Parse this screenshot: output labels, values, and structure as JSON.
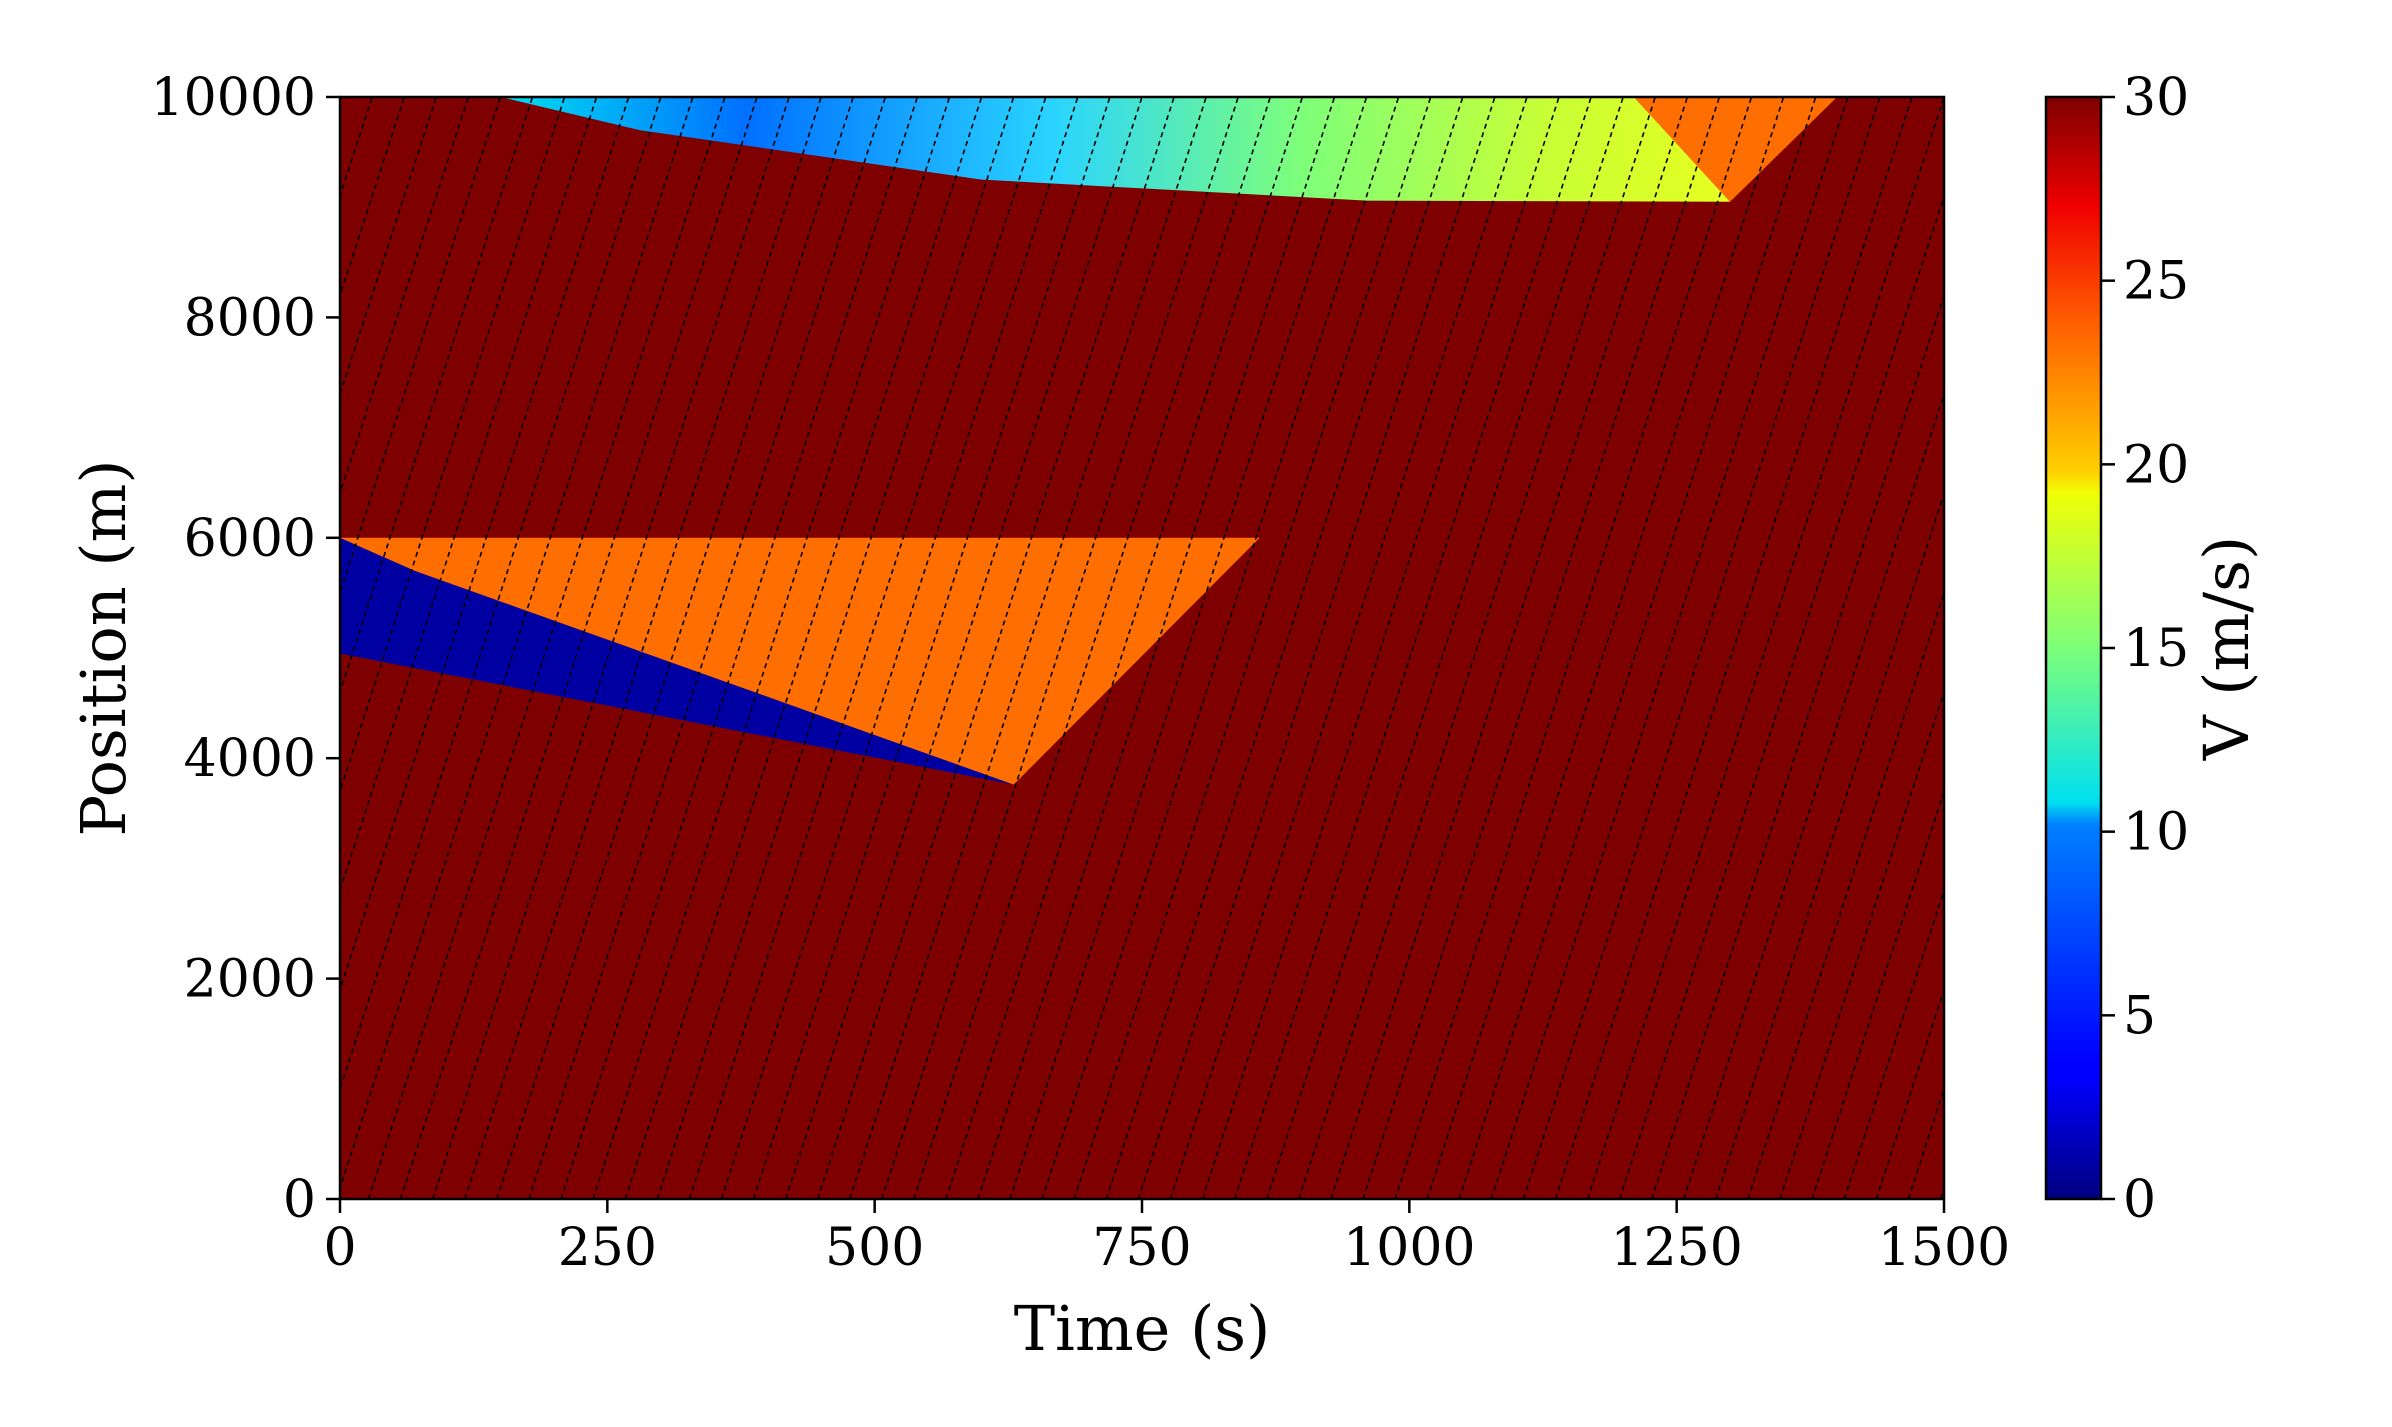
{
  "chart_data": {
    "type": "heatmap",
    "xlabel": "Time (s)",
    "ylabel": "Position (m)",
    "xlim": [
      0,
      1500
    ],
    "ylim": [
      0,
      10000
    ],
    "x_ticks": [
      "0",
      "250",
      "500",
      "750",
      "1000",
      "1250",
      "1500"
    ],
    "y_ticks": [
      "0",
      "2000",
      "4000",
      "6000",
      "8000",
      "10000"
    ],
    "colorbar": {
      "label": "V (m/s)",
      "range": [
        0,
        30
      ],
      "ticks": [
        "0",
        "5",
        "10",
        "15",
        "20",
        "25",
        "30"
      ],
      "colormap": "jet"
    },
    "background_value": 30,
    "regions": [
      {
        "name": "lower-congestion-wave",
        "value": 1,
        "polygon": [
          [
            0,
            6000
          ],
          [
            0,
            4950
          ],
          [
            630,
            3760
          ],
          [
            70,
            5700
          ]
        ]
      },
      {
        "name": "lower-recovery-region",
        "value": 23,
        "polygon": [
          [
            0,
            6000
          ],
          [
            860,
            6000
          ],
          [
            630,
            3760
          ],
          [
            70,
            5700
          ]
        ]
      },
      {
        "name": "upper-congestion-region",
        "value": 11,
        "polygon": [
          [
            150,
            10000
          ],
          [
            1210,
            10000
          ],
          [
            1300,
            9050
          ],
          [
            960,
            9060
          ],
          [
            600,
            9250
          ],
          [
            280,
            9700
          ]
        ]
      },
      {
        "name": "upper-recovery-region",
        "value": 23,
        "polygon": [
          [
            1210,
            10000
          ],
          [
            1400,
            10000
          ],
          [
            1300,
            9050
          ]
        ]
      }
    ],
    "trajectories": {
      "style": "dashed",
      "color": "#000000",
      "free_flow_speed": 30,
      "entry_spacing_s": 30
    }
  }
}
